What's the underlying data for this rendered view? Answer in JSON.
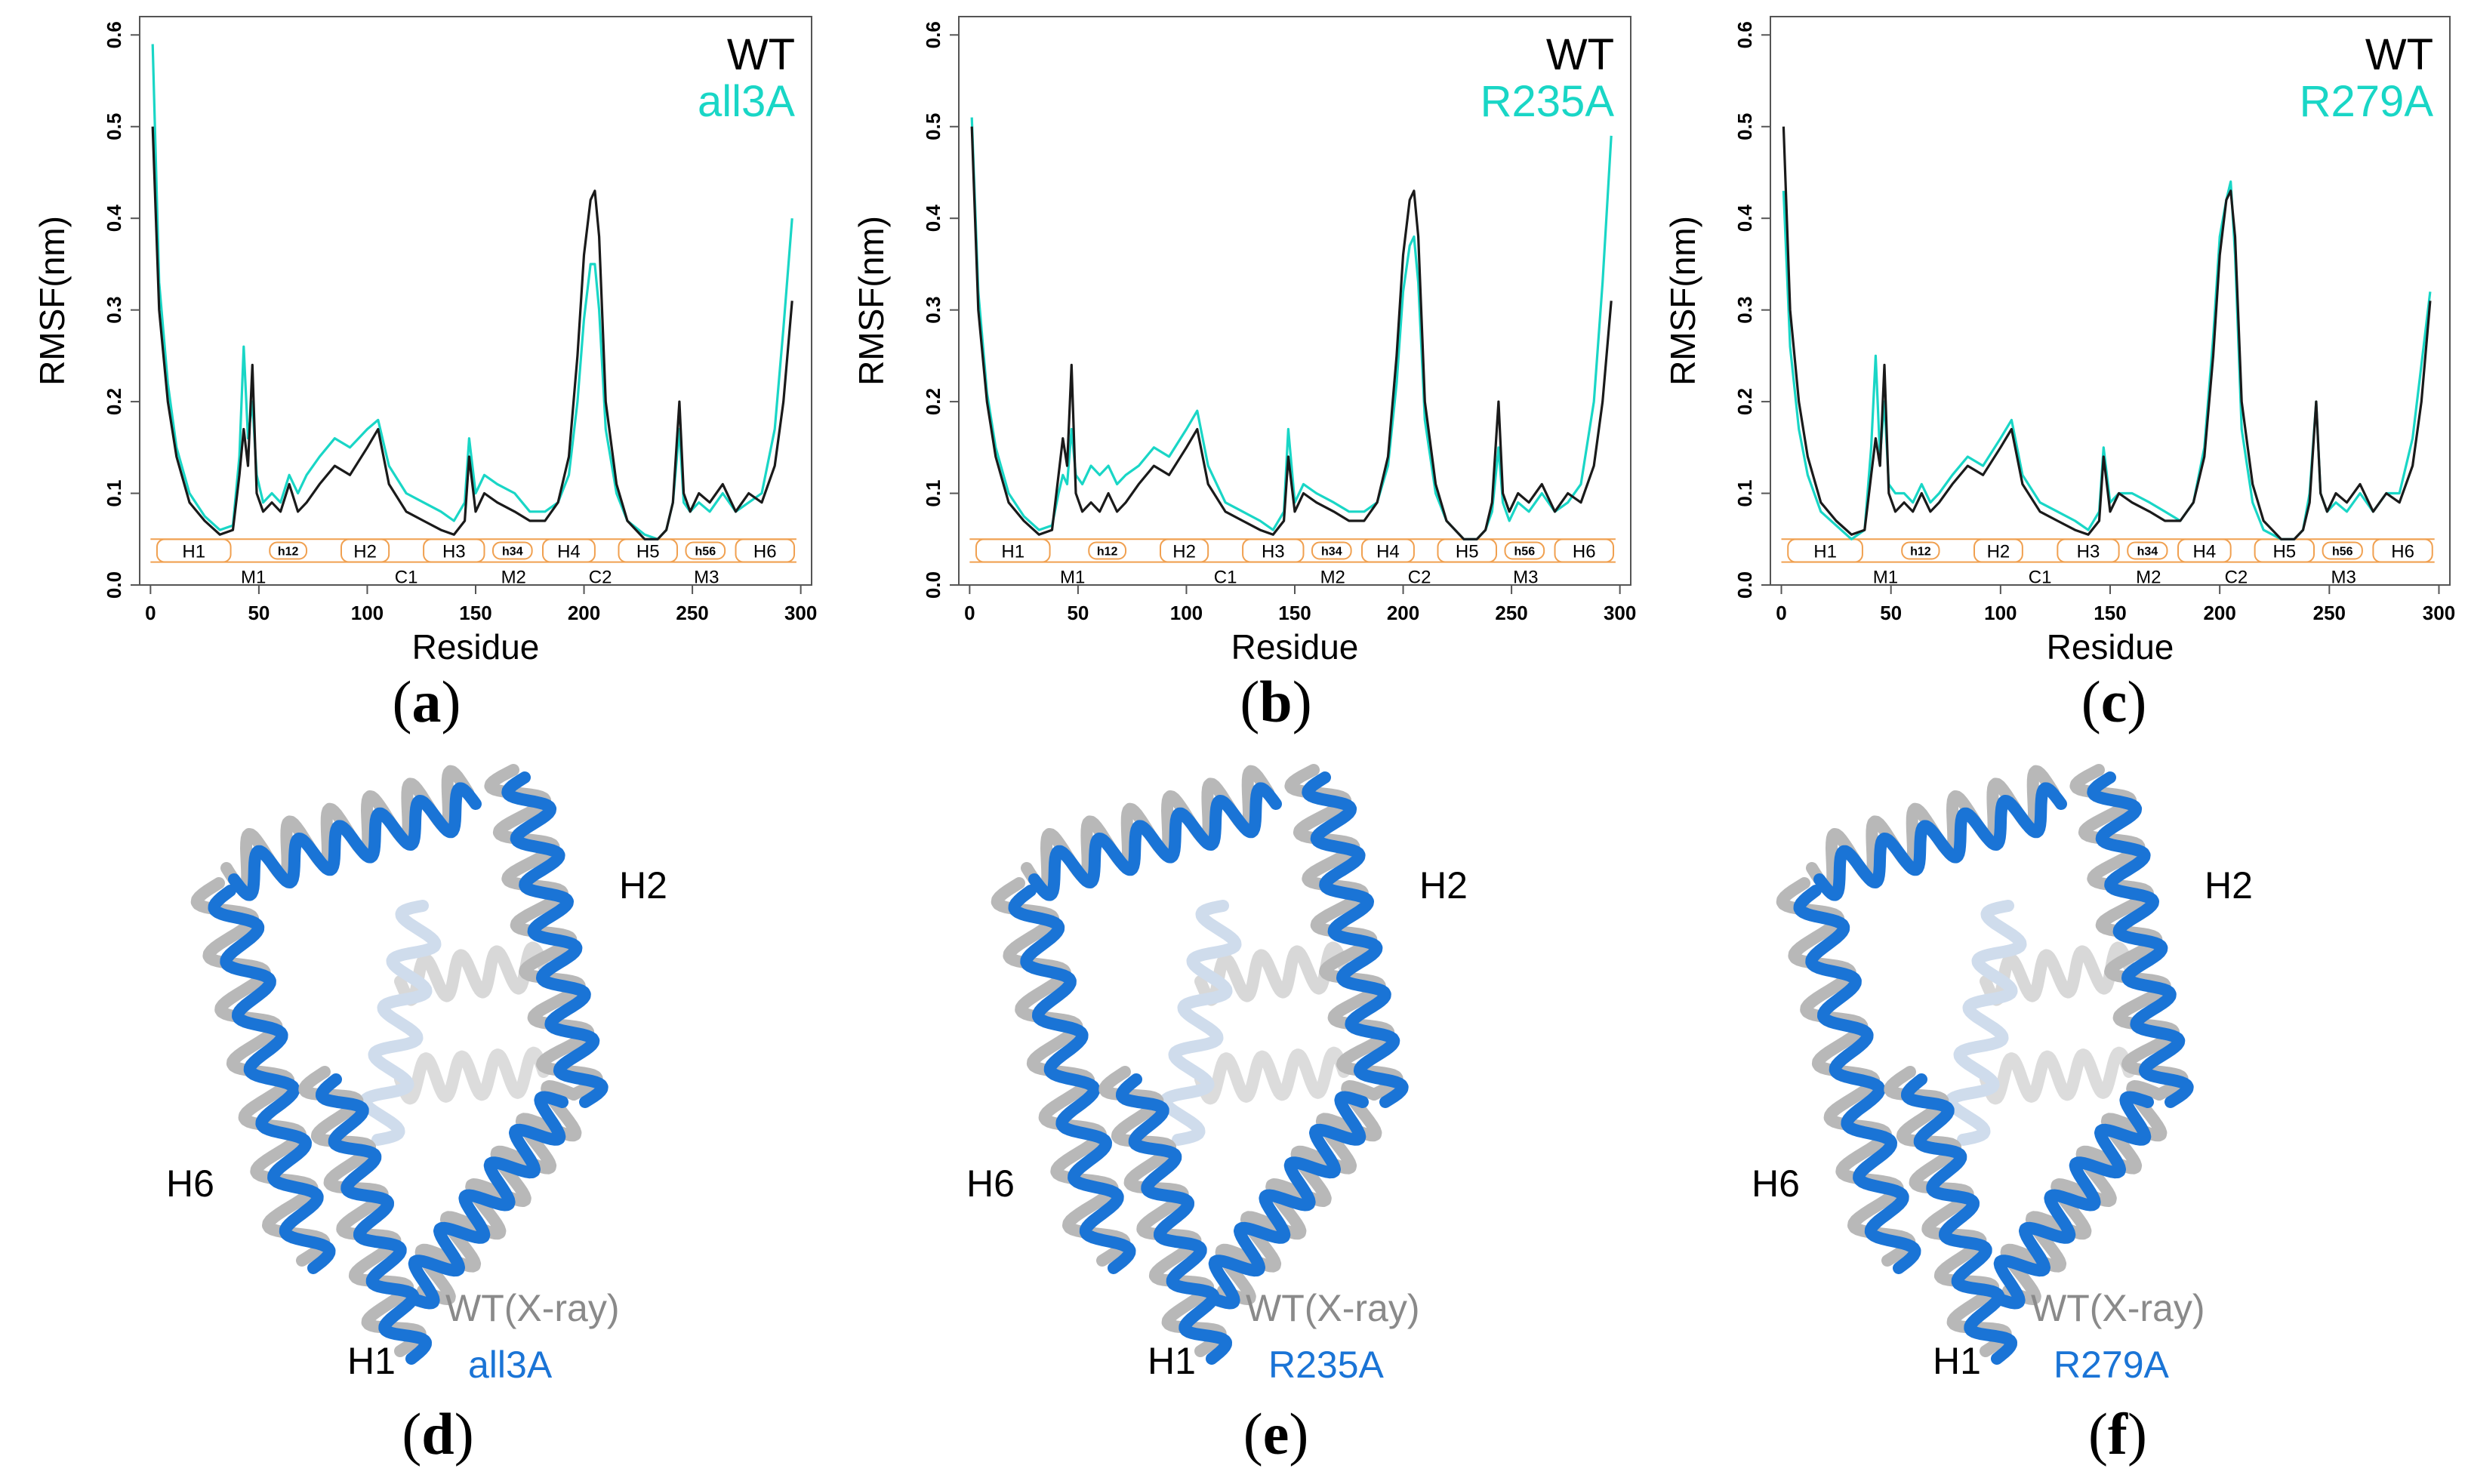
{
  "colors": {
    "wt": "#1a1a1a",
    "mutant": "#19d6c6",
    "mutant_blue": "#1a74d6",
    "xray_gray": "#8a8a8a",
    "segment_orange": "#f0a050"
  },
  "segments_top": [
    "H1",
    "h12",
    "H2",
    "H3",
    "h34",
    "H4",
    "H5",
    "h56",
    "H6"
  ],
  "segments_bottom": [
    "M1",
    "C1",
    "M2",
    "C2",
    "M3"
  ],
  "chart_data": [
    {
      "type": "line",
      "title": "",
      "xlabel": "Residue",
      "ylabel": "RMSF(nm)",
      "xlim": [
        -5,
        305
      ],
      "ylim": [
        0,
        0.62
      ],
      "xticks": [
        "0",
        "50",
        "100",
        "150",
        "200",
        "250",
        "300"
      ],
      "yticks": [
        "0.0",
        "0.1",
        "0.2",
        "0.3",
        "0.4",
        "0.5",
        "0.6"
      ],
      "legend": [
        "WT",
        "all3A"
      ],
      "panel_label": "a",
      "series": [
        {
          "name": "WT",
          "x": [
            1,
            4,
            8,
            12,
            18,
            25,
            32,
            38,
            41,
            43,
            45,
            47,
            49,
            52,
            56,
            60,
            64,
            68,
            72,
            78,
            85,
            92,
            100,
            105,
            110,
            118,
            126,
            134,
            140,
            145,
            147,
            150,
            154,
            160,
            168,
            175,
            182,
            188,
            193,
            197,
            200,
            203,
            205,
            207,
            210,
            215,
            220,
            228,
            234,
            238,
            241,
            244,
            246,
            249,
            253,
            258,
            264,
            270,
            276,
            282,
            288,
            292,
            296
          ],
          "y": [
            0.5,
            0.3,
            0.2,
            0.14,
            0.09,
            0.07,
            0.055,
            0.06,
            0.12,
            0.17,
            0.13,
            0.24,
            0.1,
            0.08,
            0.09,
            0.08,
            0.11,
            0.08,
            0.09,
            0.11,
            0.13,
            0.12,
            0.15,
            0.17,
            0.11,
            0.08,
            0.07,
            0.06,
            0.055,
            0.07,
            0.14,
            0.08,
            0.1,
            0.09,
            0.08,
            0.07,
            0.07,
            0.09,
            0.14,
            0.25,
            0.36,
            0.42,
            0.43,
            0.38,
            0.2,
            0.11,
            0.07,
            0.05,
            0.05,
            0.06,
            0.09,
            0.2,
            0.1,
            0.08,
            0.1,
            0.09,
            0.11,
            0.08,
            0.1,
            0.09,
            0.13,
            0.2,
            0.31
          ]
        },
        {
          "name": "all3A",
          "x": [
            1,
            4,
            8,
            12,
            18,
            25,
            32,
            38,
            41,
            43,
            45,
            47,
            49,
            52,
            56,
            60,
            64,
            68,
            72,
            78,
            85,
            92,
            100,
            105,
            110,
            118,
            126,
            134,
            140,
            145,
            147,
            150,
            154,
            160,
            168,
            175,
            182,
            188,
            193,
            197,
            200,
            203,
            205,
            207,
            210,
            215,
            220,
            228,
            234,
            238,
            241,
            244,
            246,
            249,
            253,
            258,
            264,
            270,
            276,
            282,
            288,
            292,
            296
          ],
          "y": [
            0.59,
            0.33,
            0.22,
            0.15,
            0.1,
            0.075,
            0.06,
            0.065,
            0.14,
            0.26,
            0.16,
            0.2,
            0.12,
            0.09,
            0.1,
            0.09,
            0.12,
            0.1,
            0.12,
            0.14,
            0.16,
            0.15,
            0.17,
            0.18,
            0.13,
            0.1,
            0.09,
            0.08,
            0.07,
            0.09,
            0.16,
            0.1,
            0.12,
            0.11,
            0.1,
            0.08,
            0.08,
            0.09,
            0.12,
            0.2,
            0.29,
            0.35,
            0.35,
            0.3,
            0.17,
            0.1,
            0.07,
            0.055,
            0.05,
            0.06,
            0.09,
            0.17,
            0.09,
            0.08,
            0.09,
            0.08,
            0.1,
            0.08,
            0.09,
            0.1,
            0.17,
            0.28,
            0.4
          ]
        }
      ]
    },
    {
      "type": "line",
      "title": "",
      "xlabel": "Residue",
      "ylabel": "RMSF(nm)",
      "xlim": [
        -5,
        305
      ],
      "ylim": [
        0,
        0.62
      ],
      "xticks": [
        "0",
        "50",
        "100",
        "150",
        "200",
        "250",
        "300"
      ],
      "yticks": [
        "0.0",
        "0.1",
        "0.2",
        "0.3",
        "0.4",
        "0.5",
        "0.6"
      ],
      "legend": [
        "WT",
        "R235A"
      ],
      "panel_label": "b",
      "series": [
        {
          "name": "WT",
          "x": [
            1,
            4,
            8,
            12,
            18,
            25,
            32,
            38,
            41,
            43,
            45,
            47,
            49,
            52,
            56,
            60,
            64,
            68,
            72,
            78,
            85,
            92,
            100,
            105,
            110,
            118,
            126,
            134,
            140,
            145,
            147,
            150,
            154,
            160,
            168,
            175,
            182,
            188,
            193,
            197,
            200,
            203,
            205,
            207,
            210,
            215,
            220,
            228,
            234,
            238,
            241,
            244,
            246,
            249,
            253,
            258,
            264,
            270,
            276,
            282,
            288,
            292,
            296
          ],
          "y": [
            0.5,
            0.3,
            0.2,
            0.14,
            0.09,
            0.07,
            0.055,
            0.06,
            0.12,
            0.16,
            0.13,
            0.24,
            0.1,
            0.08,
            0.09,
            0.08,
            0.1,
            0.08,
            0.09,
            0.11,
            0.13,
            0.12,
            0.15,
            0.17,
            0.11,
            0.08,
            0.07,
            0.06,
            0.055,
            0.07,
            0.14,
            0.08,
            0.1,
            0.09,
            0.08,
            0.07,
            0.07,
            0.09,
            0.14,
            0.25,
            0.36,
            0.42,
            0.43,
            0.38,
            0.2,
            0.11,
            0.07,
            0.05,
            0.05,
            0.06,
            0.09,
            0.2,
            0.1,
            0.08,
            0.1,
            0.09,
            0.11,
            0.08,
            0.1,
            0.09,
            0.13,
            0.2,
            0.31
          ]
        },
        {
          "name": "R235A",
          "x": [
            1,
            4,
            8,
            12,
            18,
            25,
            32,
            38,
            41,
            43,
            45,
            47,
            49,
            52,
            56,
            60,
            64,
            68,
            72,
            78,
            85,
            92,
            100,
            105,
            110,
            118,
            126,
            134,
            140,
            145,
            147,
            150,
            154,
            160,
            168,
            175,
            182,
            188,
            193,
            197,
            200,
            203,
            205,
            207,
            210,
            215,
            220,
            228,
            234,
            238,
            241,
            244,
            246,
            249,
            253,
            258,
            264,
            270,
            276,
            282,
            288,
            292,
            296
          ],
          "y": [
            0.51,
            0.32,
            0.21,
            0.15,
            0.1,
            0.075,
            0.06,
            0.065,
            0.1,
            0.12,
            0.11,
            0.17,
            0.12,
            0.11,
            0.13,
            0.12,
            0.13,
            0.11,
            0.12,
            0.13,
            0.15,
            0.14,
            0.17,
            0.19,
            0.13,
            0.09,
            0.08,
            0.07,
            0.06,
            0.08,
            0.17,
            0.09,
            0.11,
            0.1,
            0.09,
            0.08,
            0.08,
            0.09,
            0.13,
            0.22,
            0.32,
            0.37,
            0.38,
            0.33,
            0.18,
            0.1,
            0.07,
            0.05,
            0.05,
            0.06,
            0.08,
            0.15,
            0.09,
            0.07,
            0.09,
            0.08,
            0.1,
            0.08,
            0.09,
            0.11,
            0.2,
            0.33,
            0.49
          ]
        }
      ]
    },
    {
      "type": "line",
      "title": "",
      "xlabel": "Residue",
      "ylabel": "RMSF(nm)",
      "xlim": [
        -5,
        305
      ],
      "ylim": [
        0,
        0.62
      ],
      "xticks": [
        "0",
        "50",
        "100",
        "150",
        "200",
        "250",
        "300"
      ],
      "yticks": [
        "0.0",
        "0.1",
        "0.2",
        "0.3",
        "0.4",
        "0.5",
        "0.6"
      ],
      "legend": [
        "WT",
        "R279A"
      ],
      "panel_label": "c",
      "series": [
        {
          "name": "WT",
          "x": [
            1,
            4,
            8,
            12,
            18,
            25,
            32,
            38,
            41,
            43,
            45,
            47,
            49,
            52,
            56,
            60,
            64,
            68,
            72,
            78,
            85,
            92,
            100,
            105,
            110,
            118,
            126,
            134,
            140,
            145,
            147,
            150,
            154,
            160,
            168,
            175,
            182,
            188,
            193,
            197,
            200,
            203,
            205,
            207,
            210,
            215,
            220,
            228,
            234,
            238,
            241,
            244,
            246,
            249,
            253,
            258,
            264,
            270,
            276,
            282,
            288,
            292,
            296
          ],
          "y": [
            0.5,
            0.3,
            0.2,
            0.14,
            0.09,
            0.07,
            0.055,
            0.06,
            0.12,
            0.16,
            0.13,
            0.24,
            0.1,
            0.08,
            0.09,
            0.08,
            0.1,
            0.08,
            0.09,
            0.11,
            0.13,
            0.12,
            0.15,
            0.17,
            0.11,
            0.08,
            0.07,
            0.06,
            0.055,
            0.07,
            0.14,
            0.08,
            0.1,
            0.09,
            0.08,
            0.07,
            0.07,
            0.09,
            0.14,
            0.25,
            0.36,
            0.42,
            0.43,
            0.38,
            0.2,
            0.11,
            0.07,
            0.05,
            0.05,
            0.06,
            0.09,
            0.2,
            0.1,
            0.08,
            0.1,
            0.09,
            0.11,
            0.08,
            0.1,
            0.09,
            0.13,
            0.2,
            0.31
          ]
        },
        {
          "name": "R279A",
          "x": [
            1,
            4,
            8,
            12,
            18,
            25,
            32,
            38,
            41,
            43,
            45,
            47,
            49,
            52,
            56,
            60,
            64,
            68,
            72,
            78,
            85,
            92,
            100,
            105,
            110,
            118,
            126,
            134,
            140,
            145,
            147,
            150,
            154,
            160,
            168,
            175,
            182,
            188,
            193,
            197,
            200,
            203,
            205,
            207,
            210,
            215,
            220,
            228,
            234,
            238,
            241,
            244,
            246,
            249,
            253,
            258,
            264,
            270,
            276,
            282,
            288,
            292,
            296
          ],
          "y": [
            0.43,
            0.26,
            0.17,
            0.12,
            0.08,
            0.065,
            0.05,
            0.06,
            0.15,
            0.25,
            0.14,
            0.2,
            0.11,
            0.1,
            0.1,
            0.09,
            0.11,
            0.09,
            0.1,
            0.12,
            0.14,
            0.13,
            0.16,
            0.18,
            0.12,
            0.09,
            0.08,
            0.07,
            0.06,
            0.08,
            0.15,
            0.09,
            0.1,
            0.1,
            0.09,
            0.08,
            0.07,
            0.09,
            0.15,
            0.27,
            0.38,
            0.42,
            0.44,
            0.36,
            0.17,
            0.09,
            0.06,
            0.05,
            0.05,
            0.06,
            0.1,
            0.2,
            0.1,
            0.08,
            0.09,
            0.08,
            0.1,
            0.08,
            0.1,
            0.1,
            0.16,
            0.24,
            0.32
          ]
        }
      ]
    }
  ],
  "structures": [
    {
      "panel_label": "d",
      "labels": {
        "h2": "H2",
        "h6": "H6",
        "h1": "H1",
        "wt": "WT(X-ray)",
        "mut": "all3A"
      }
    },
    {
      "panel_label": "e",
      "labels": {
        "h2": "H2",
        "h6": "H6",
        "h1": "H1",
        "wt": "WT(X-ray)",
        "mut": "R235A"
      }
    },
    {
      "panel_label": "f",
      "labels": {
        "h2": "H2",
        "h6": "H6",
        "h1": "H1",
        "wt": "WT(X-ray)",
        "mut": "R279A"
      }
    }
  ]
}
